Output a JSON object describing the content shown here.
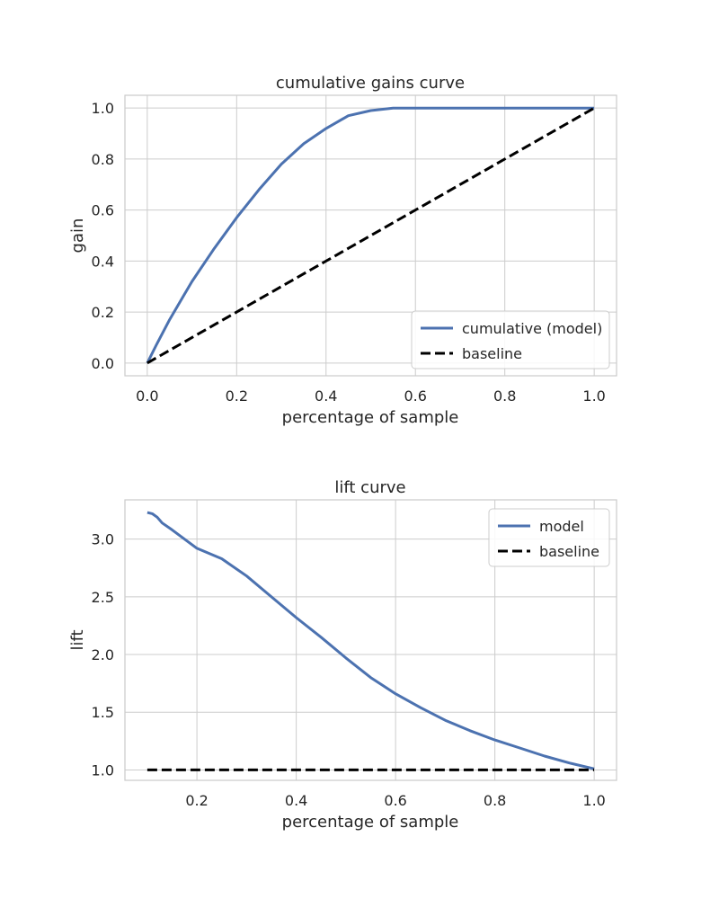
{
  "chart_data": [
    {
      "type": "line",
      "title": "cumulative gains curve",
      "xlabel": "percentage of sample",
      "ylabel": "gain",
      "xlim": [
        -0.05,
        1.05
      ],
      "ylim": [
        -0.05,
        1.05
      ],
      "xticks": [
        0.0,
        0.2,
        0.4,
        0.6,
        0.8,
        1.0
      ],
      "xtick_labels": [
        "0.0",
        "0.2",
        "0.4",
        "0.6",
        "0.8",
        "1.0"
      ],
      "yticks": [
        0.0,
        0.2,
        0.4,
        0.6,
        0.8,
        1.0
      ],
      "ytick_labels": [
        "0.0",
        "0.2",
        "0.4",
        "0.6",
        "0.8",
        "1.0"
      ],
      "grid": true,
      "legend_position": "lower-right",
      "series": [
        {
          "name": "cumulative (model)",
          "color": "#4c72b0",
          "style": "solid",
          "x": [
            0.0,
            0.02,
            0.05,
            0.08,
            0.1,
            0.15,
            0.2,
            0.25,
            0.3,
            0.35,
            0.4,
            0.45,
            0.5,
            0.55,
            0.6,
            0.7,
            0.8,
            0.9,
            1.0
          ],
          "y": [
            0.0,
            0.07,
            0.17,
            0.26,
            0.32,
            0.45,
            0.57,
            0.68,
            0.78,
            0.86,
            0.92,
            0.97,
            0.99,
            1.0,
            1.0,
            1.0,
            1.0,
            1.0,
            1.0
          ]
        },
        {
          "name": "baseline",
          "color": "#000000",
          "style": "dashed",
          "x": [
            0.0,
            1.0
          ],
          "y": [
            0.0,
            1.0
          ]
        }
      ]
    },
    {
      "type": "line",
      "title": "lift curve",
      "xlabel": "percentage of sample",
      "ylabel": "lift",
      "xlim": [
        0.055,
        1.045
      ],
      "ylim": [
        0.91,
        3.34
      ],
      "xticks": [
        0.2,
        0.4,
        0.6,
        0.8,
        1.0
      ],
      "xtick_labels": [
        "0.2",
        "0.4",
        "0.6",
        "0.8",
        "1.0"
      ],
      "yticks": [
        1.0,
        1.5,
        2.0,
        2.5,
        3.0
      ],
      "ytick_labels": [
        "1.0",
        "1.5",
        "2.0",
        "2.5",
        "3.0"
      ],
      "grid": true,
      "legend_position": "top-right",
      "series": [
        {
          "name": "model",
          "color": "#4c72b0",
          "style": "solid",
          "x": [
            0.1,
            0.11,
            0.12,
            0.13,
            0.15,
            0.2,
            0.25,
            0.3,
            0.35,
            0.4,
            0.45,
            0.5,
            0.55,
            0.6,
            0.65,
            0.7,
            0.75,
            0.8,
            0.85,
            0.9,
            0.95,
            1.0
          ],
          "y": [
            3.23,
            3.22,
            3.19,
            3.14,
            3.08,
            2.92,
            2.83,
            2.68,
            2.5,
            2.32,
            2.15,
            1.97,
            1.8,
            1.66,
            1.54,
            1.43,
            1.34,
            1.26,
            1.19,
            1.12,
            1.06,
            1.01
          ]
        },
        {
          "name": "baseline",
          "color": "#000000",
          "style": "dashed",
          "x": [
            0.1,
            1.0
          ],
          "y": [
            1.0,
            1.0
          ]
        }
      ]
    }
  ]
}
